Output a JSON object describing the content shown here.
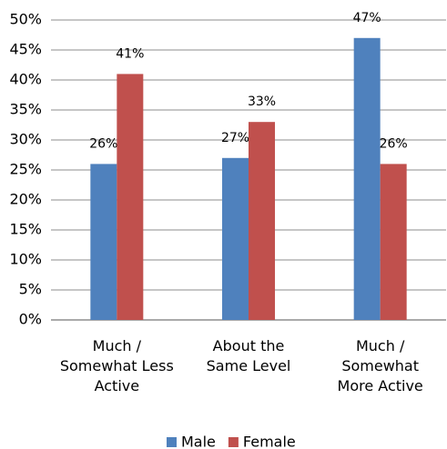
{
  "chart_data": {
    "type": "bar",
    "categories": [
      "Much /\nSomewhat Less\nActive",
      "About the\nSame Level",
      "Much /\nSomewhat\nMore Active"
    ],
    "series": [
      {
        "name": "Male",
        "color": "#4f81bd",
        "values": [
          26,
          27,
          47
        ],
        "value_labels": [
          "26%",
          "27%",
          "47%"
        ]
      },
      {
        "name": "Female",
        "color": "#c0504d",
        "values": [
          41,
          33,
          26
        ],
        "value_labels": [
          "41%",
          "33%",
          "26%"
        ]
      }
    ],
    "ylim": [
      0,
      50
    ],
    "yticks": [
      {
        "value": 0,
        "label": "0%"
      },
      {
        "value": 5,
        "label": "5%"
      },
      {
        "value": 10,
        "label": "10%"
      },
      {
        "value": 15,
        "label": "15%"
      },
      {
        "value": 20,
        "label": "20%"
      },
      {
        "value": 25,
        "label": "25%"
      },
      {
        "value": 30,
        "label": "30%"
      },
      {
        "value": 35,
        "label": "35%"
      },
      {
        "value": 40,
        "label": "40%"
      },
      {
        "value": 45,
        "label": "45%"
      },
      {
        "value": 50,
        "label": "50%"
      }
    ],
    "grid": true,
    "legend": "bottom"
  }
}
